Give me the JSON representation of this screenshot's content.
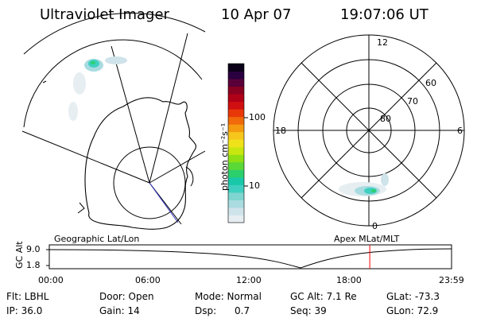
{
  "header": {
    "title": "Ultraviolet Imager",
    "date": "10 Apr 07",
    "time": "19:07:06 UT"
  },
  "colorbar": {
    "unit": "photon cm⁻²s⁻¹",
    "tick_100": "100",
    "tick_10": "10",
    "colors": [
      "#e6eef2",
      "#cfe3ea",
      "#a9dbe0",
      "#7fd5d0",
      "#3fcfc0",
      "#18c8a8",
      "#2bd06c",
      "#5ad838",
      "#8ee014",
      "#c8e610",
      "#efe21a",
      "#f6c61c",
      "#f59a10",
      "#f06a0a",
      "#e83808",
      "#d01010",
      "#b00018",
      "#8a0020",
      "#5a0038",
      "#2a0040",
      "#0a0018"
    ]
  },
  "polar": {
    "labels": [
      "12",
      "6",
      "0",
      "18",
      "60",
      "70",
      "80"
    ]
  },
  "labels": {
    "geo": "Geographic Lat/Lon",
    "apex": "Apex  MLat/MLT"
  },
  "timeline": {
    "axis_label": "GC Alt",
    "ymax": "9.0",
    "ymin": "1.8",
    "ticks": [
      "00:00",
      "06:00",
      "12:00",
      "18:00",
      "23:59"
    ],
    "marker_hour": 19.12,
    "marker_color": "#ff0000"
  },
  "info": {
    "row1": {
      "flt": "Flt: LBHL",
      "door": "Door: Open",
      "mode": "Mode: Normal",
      "gcalt": "GC Alt: 7.1 Re",
      "glat": "GLat: -73.3"
    },
    "row2": {
      "ip": "IP: 36.0",
      "gain": "Gain: 14",
      "dsp": "Dsp:      0.7",
      "seq": "Seq: 39",
      "glon": "GLon: 72.9"
    }
  }
}
